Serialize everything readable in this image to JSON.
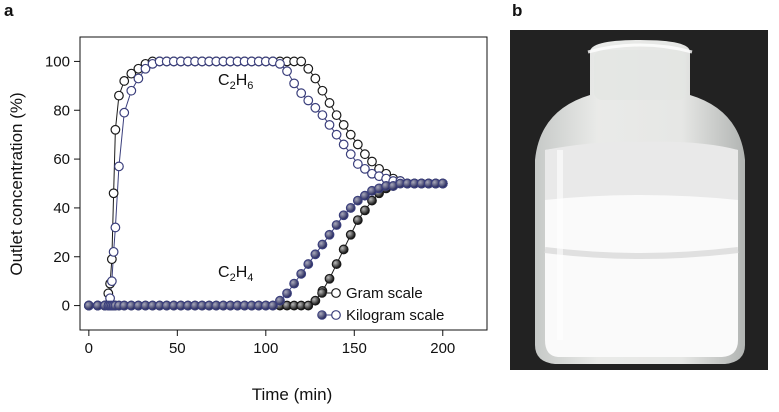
{
  "panel_labels": [
    "a",
    "b"
  ],
  "chart_data": {
    "type": "line",
    "xlabel": "Time (min)",
    "ylabel": "Outlet concentration (%)",
    "annotations": [
      "C2H6",
      "C2H4"
    ],
    "xlim": [
      -5,
      225
    ],
    "ylim": [
      -10,
      110
    ],
    "xticks": [
      0,
      50,
      100,
      150,
      200
    ],
    "yticks": [
      0,
      20,
      40,
      60,
      80,
      100
    ],
    "legend": "lower right",
    "x": [
      0,
      5,
      9,
      11,
      12,
      13,
      14,
      15,
      17,
      20,
      24,
      28,
      32,
      36,
      40,
      44,
      48,
      52,
      56,
      60,
      64,
      68,
      72,
      76,
      80,
      84,
      88,
      92,
      96,
      100,
      104,
      108,
      112,
      116,
      120,
      124,
      128,
      132,
      136,
      140,
      144,
      148,
      152,
      156,
      160,
      164,
      168,
      172,
      176,
      180,
      184,
      188,
      192,
      196,
      200
    ],
    "series": [
      {
        "name": "Gram scale",
        "color": "#1a1a1a",
        "values": [
          0,
          0,
          0,
          5,
          9,
          19,
          46,
          72,
          86,
          92,
          95,
          97,
          99,
          100,
          100,
          100,
          100,
          100,
          100,
          100,
          100,
          100,
          100,
          100,
          100,
          100,
          100,
          100,
          100,
          100,
          100,
          100,
          100,
          100,
          100,
          97,
          93,
          88,
          83,
          78,
          74,
          70,
          66,
          62,
          59,
          56,
          54,
          52,
          51,
          50,
          50,
          50,
          50,
          50,
          50
        ],
        "c2h4_values": [
          0,
          0,
          0,
          0,
          0,
          0,
          0,
          0,
          0,
          0,
          0,
          0,
          0,
          0,
          0,
          0,
          0,
          0,
          0,
          0,
          0,
          0,
          0,
          0,
          0,
          0,
          0,
          0,
          0,
          0,
          0,
          0,
          0,
          0,
          0,
          0,
          2,
          6,
          11,
          17,
          23,
          29,
          35,
          39,
          43,
          46,
          48,
          49,
          50,
          50,
          50,
          50,
          50,
          50,
          50
        ]
      },
      {
        "name": "Kilogram scale",
        "color": "#3b3f7c",
        "values": [
          0,
          0,
          0,
          0,
          3,
          10,
          22,
          32,
          57,
          79,
          88,
          93,
          97,
          99,
          100,
          100,
          100,
          100,
          100,
          100,
          100,
          100,
          100,
          100,
          100,
          100,
          100,
          100,
          100,
          100,
          100,
          99,
          96,
          91,
          87,
          84,
          81,
          78,
          74,
          70,
          66,
          62,
          58,
          56,
          54,
          53,
          52,
          51,
          51,
          50,
          50,
          50,
          50,
          50,
          50
        ],
        "c2h4_values": [
          0,
          0,
          0,
          0,
          0,
          0,
          0,
          0,
          0,
          0,
          0,
          0,
          0,
          0,
          0,
          0,
          0,
          0,
          0,
          0,
          0,
          0,
          0,
          0,
          0,
          0,
          0,
          0,
          0,
          0,
          0,
          2,
          5,
          9,
          13,
          17,
          21,
          25,
          29,
          33,
          37,
          40,
          43,
          45,
          47,
          48,
          49,
          49,
          50,
          50,
          50,
          50,
          50,
          50,
          50
        ]
      }
    ]
  }
}
